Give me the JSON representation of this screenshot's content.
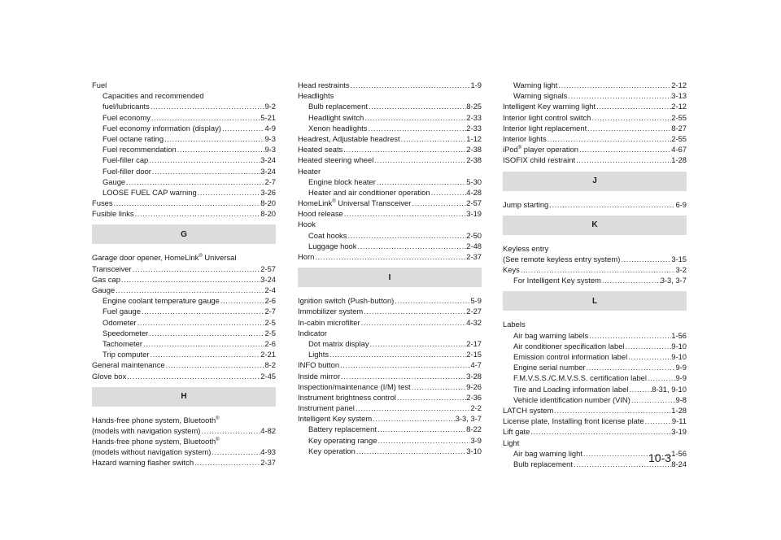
{
  "columns": [
    [
      {
        "type": "entry",
        "level": 0,
        "text": "Fuel",
        "page": ""
      },
      {
        "type": "entry",
        "level": 1,
        "text": "Capacities and recommended",
        "page": ""
      },
      {
        "type": "entry",
        "level": 1,
        "text": "fuel/lubricants",
        "page": "9-2"
      },
      {
        "type": "entry",
        "level": 1,
        "text": "Fuel economy",
        "page": "5-21"
      },
      {
        "type": "entry",
        "level": 1,
        "text": "Fuel economy information (display)",
        "page": "4-9"
      },
      {
        "type": "entry",
        "level": 1,
        "text": "Fuel octane rating",
        "page": "9-3"
      },
      {
        "type": "entry",
        "level": 1,
        "text": "Fuel recommendation",
        "page": "9-3"
      },
      {
        "type": "entry",
        "level": 1,
        "text": "Fuel-filler cap",
        "page": "3-24"
      },
      {
        "type": "entry",
        "level": 1,
        "text": "Fuel-filler door",
        "page": "3-24"
      },
      {
        "type": "entry",
        "level": 1,
        "text": "Gauge",
        "page": "2-7"
      },
      {
        "type": "entry",
        "level": 1,
        "text": "LOOSE FUEL CAP warning",
        "page": "3-26"
      },
      {
        "type": "entry",
        "level": 0,
        "text": "Fuses",
        "page": "8-20"
      },
      {
        "type": "entry",
        "level": 0,
        "text": "Fusible links",
        "page": "8-20"
      },
      {
        "type": "header",
        "letter": "G"
      },
      {
        "type": "entry",
        "level": 0,
        "text": "Garage door opener, HomeLink",
        "sup": "®",
        "after": " Universal",
        "page": ""
      },
      {
        "type": "entry",
        "level": 0,
        "text": "Transceiver",
        "page": "2-57"
      },
      {
        "type": "entry",
        "level": 0,
        "text": "Gas cap",
        "page": "3-24"
      },
      {
        "type": "entry",
        "level": 0,
        "text": "Gauge",
        "page": "2-4"
      },
      {
        "type": "entry",
        "level": 1,
        "text": "Engine coolant temperature gauge",
        "page": "2-6"
      },
      {
        "type": "entry",
        "level": 1,
        "text": "Fuel gauge",
        "page": "2-7"
      },
      {
        "type": "entry",
        "level": 1,
        "text": "Odometer",
        "page": "2-5"
      },
      {
        "type": "entry",
        "level": 1,
        "text": "Speedometer",
        "page": "2-5"
      },
      {
        "type": "entry",
        "level": 1,
        "text": "Tachometer",
        "page": "2-6"
      },
      {
        "type": "entry",
        "level": 1,
        "text": "Trip computer",
        "page": "2-21"
      },
      {
        "type": "entry",
        "level": 0,
        "text": "General maintenance",
        "page": "8-2"
      },
      {
        "type": "entry",
        "level": 0,
        "text": "Glove box",
        "page": "2-45"
      },
      {
        "type": "header",
        "letter": "H"
      },
      {
        "type": "entry",
        "level": 0,
        "text": "Hands-free phone system, Bluetooth",
        "sup": "®",
        "page": ""
      },
      {
        "type": "entry",
        "level": 0,
        "text": "(models with navigation system)",
        "page": "4-82"
      },
      {
        "type": "entry",
        "level": 0,
        "text": "Hands-free phone system, Bluetooth",
        "sup": "®",
        "page": ""
      },
      {
        "type": "entry",
        "level": 0,
        "text": "(models without navigation system)",
        "page": "4-93"
      },
      {
        "type": "entry",
        "level": 0,
        "text": "Hazard warning flasher switch",
        "page": "2-37"
      }
    ],
    [
      {
        "type": "entry",
        "level": 0,
        "text": "Head restraints",
        "page": "1-9"
      },
      {
        "type": "entry",
        "level": 0,
        "text": "Headlights",
        "page": ""
      },
      {
        "type": "entry",
        "level": 1,
        "text": "Bulb replacement",
        "page": "8-25"
      },
      {
        "type": "entry",
        "level": 1,
        "text": "Headlight switch",
        "page": "2-33"
      },
      {
        "type": "entry",
        "level": 1,
        "text": "Xenon headlights",
        "page": "2-33"
      },
      {
        "type": "entry",
        "level": 0,
        "text": "Headrest, Adjustable headrest",
        "page": "1-12"
      },
      {
        "type": "entry",
        "level": 0,
        "text": "Heated seats",
        "page": "2-38"
      },
      {
        "type": "entry",
        "level": 0,
        "text": "Heated steering wheel",
        "page": "2-38"
      },
      {
        "type": "entry",
        "level": 0,
        "text": "Heater",
        "page": ""
      },
      {
        "type": "entry",
        "level": 1,
        "text": "Engine block heater",
        "page": "5-30"
      },
      {
        "type": "entry",
        "level": 1,
        "text": "Heater and air conditioner operation",
        "page": "4-28"
      },
      {
        "type": "entry",
        "level": 0,
        "text": "HomeLink",
        "sup": "®",
        "after": " Universal Transceiver",
        "page": "2-57"
      },
      {
        "type": "entry",
        "level": 0,
        "text": "Hood release",
        "page": "3-19"
      },
      {
        "type": "entry",
        "level": 0,
        "text": "Hook",
        "page": ""
      },
      {
        "type": "entry",
        "level": 1,
        "text": "Coat hooks",
        "page": "2-50"
      },
      {
        "type": "entry",
        "level": 1,
        "text": "Luggage hook",
        "page": "2-48"
      },
      {
        "type": "entry",
        "level": 0,
        "text": "Horn",
        "page": "2-37"
      },
      {
        "type": "header",
        "letter": "I"
      },
      {
        "type": "entry",
        "level": 0,
        "text": "Ignition switch (Push-button)",
        "page": "5-9"
      },
      {
        "type": "entry",
        "level": 0,
        "text": "Immobilizer system",
        "page": "2-27"
      },
      {
        "type": "entry",
        "level": 0,
        "text": "In-cabin microfilter",
        "page": "4-32"
      },
      {
        "type": "entry",
        "level": 0,
        "text": "Indicator",
        "page": ""
      },
      {
        "type": "entry",
        "level": 1,
        "text": "Dot matrix display",
        "page": "2-17"
      },
      {
        "type": "entry",
        "level": 1,
        "text": "Lights",
        "page": "2-15"
      },
      {
        "type": "entry",
        "level": 0,
        "text": "INFO button",
        "page": "4-7"
      },
      {
        "type": "entry",
        "level": 0,
        "text": "Inside mirror",
        "page": "3-28"
      },
      {
        "type": "entry",
        "level": 0,
        "text": "Inspection/maintenance (I/M) test",
        "page": "9-26"
      },
      {
        "type": "entry",
        "level": 0,
        "text": "Instrument brightness control",
        "page": "2-36"
      },
      {
        "type": "entry",
        "level": 0,
        "text": "Instrument panel",
        "page": "2-2"
      },
      {
        "type": "entry",
        "level": 0,
        "text": "Intelligent Key system",
        "page": "3-3, 3-7"
      },
      {
        "type": "entry",
        "level": 1,
        "text": "Battery replacement",
        "page": "8-22"
      },
      {
        "type": "entry",
        "level": 1,
        "text": "Key operating range",
        "page": "3-9"
      },
      {
        "type": "entry",
        "level": 1,
        "text": "Key operation",
        "page": "3-10"
      }
    ],
    [
      {
        "type": "entry",
        "level": 1,
        "text": "Warning light",
        "page": "2-12"
      },
      {
        "type": "entry",
        "level": 1,
        "text": "Warning signals",
        "page": "3-13"
      },
      {
        "type": "entry",
        "level": 0,
        "text": "Intelligent Key warning light",
        "page": "2-12"
      },
      {
        "type": "entry",
        "level": 0,
        "text": "Interior light control switch",
        "page": "2-55"
      },
      {
        "type": "entry",
        "level": 0,
        "text": "Interior light replacement",
        "page": "8-27"
      },
      {
        "type": "entry",
        "level": 0,
        "text": "Interior lights",
        "page": "2-55"
      },
      {
        "type": "entry",
        "level": 0,
        "text": "iPod",
        "sup": "®",
        "after": " player operation",
        "page": "4-67"
      },
      {
        "type": "entry",
        "level": 0,
        "text": "ISOFIX child restraint",
        "page": "1-28"
      },
      {
        "type": "header",
        "letter": "J"
      },
      {
        "type": "entry",
        "level": 0,
        "text": "Jump starting",
        "page": "6-9"
      },
      {
        "type": "header",
        "letter": "K"
      },
      {
        "type": "entry",
        "level": 0,
        "text": "Keyless entry",
        "page": ""
      },
      {
        "type": "entry",
        "level": 0,
        "text": "(See remote keyless entry system)",
        "page": "3-15"
      },
      {
        "type": "entry",
        "level": 0,
        "text": "Keys",
        "page": "3-2"
      },
      {
        "type": "entry",
        "level": 1,
        "text": "For Intelligent Key system",
        "page": "3-3, 3-7"
      },
      {
        "type": "header",
        "letter": "L"
      },
      {
        "type": "entry",
        "level": 0,
        "text": "Labels",
        "page": ""
      },
      {
        "type": "entry",
        "level": 1,
        "text": "Air bag warning labels",
        "page": "1-56"
      },
      {
        "type": "entry",
        "level": 1,
        "text": "Air conditioner specification label",
        "page": "9-10"
      },
      {
        "type": "entry",
        "level": 1,
        "text": "Emission control information label",
        "page": "9-10"
      },
      {
        "type": "entry",
        "level": 1,
        "text": "Engine serial number",
        "page": "9-9"
      },
      {
        "type": "entry",
        "level": 1,
        "text": "F.M.V.S.S./C.M.V.S.S. certification label",
        "page": "9-9"
      },
      {
        "type": "entry",
        "level": 1,
        "text": "Tire and Loading information label",
        "page": "8-31, 9-10"
      },
      {
        "type": "entry",
        "level": 1,
        "text": "Vehicle identification number (VIN)",
        "page": "9-8"
      },
      {
        "type": "entry",
        "level": 0,
        "text": "LATCH system",
        "page": "1-28"
      },
      {
        "type": "entry",
        "level": 0,
        "text": "License plate, Installing front license plate",
        "page": "9-11"
      },
      {
        "type": "entry",
        "level": 0,
        "text": "Lift gate",
        "page": "3-19"
      },
      {
        "type": "entry",
        "level": 0,
        "text": "Light",
        "page": ""
      },
      {
        "type": "entry",
        "level": 1,
        "text": "Air bag warning light",
        "page": "1-56"
      },
      {
        "type": "entry",
        "level": 1,
        "text": "Bulb replacement",
        "page": "8-24"
      }
    ]
  ],
  "page_number": "10-3"
}
